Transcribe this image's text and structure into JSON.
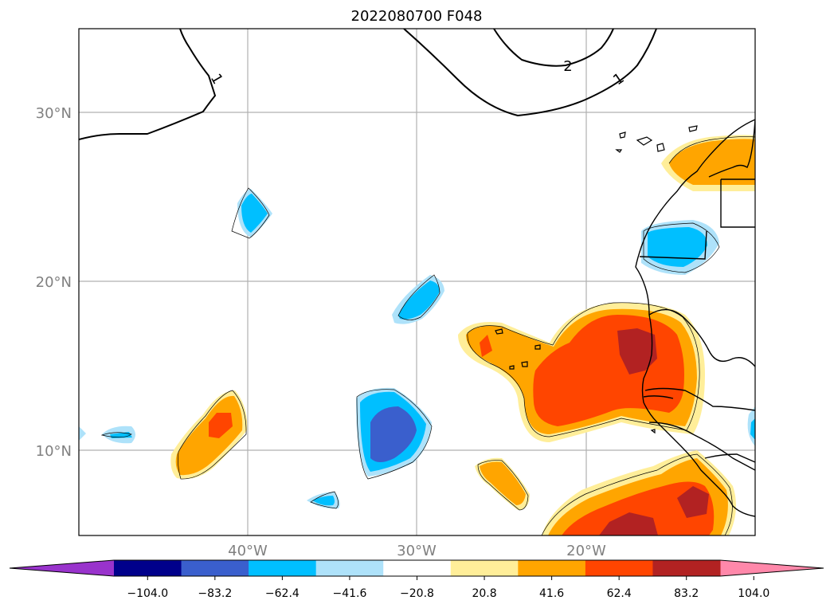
{
  "title": "2022080700 F048",
  "map": {
    "lat_labels": [
      "30°N",
      "20°N",
      "10°N"
    ],
    "lon_labels": [
      "40°W",
      "30°W",
      "20°W"
    ],
    "contour_labels": [
      "1",
      "1",
      "2"
    ]
  },
  "colorbar": {
    "tick_labels": [
      "−104.0",
      "−83.2",
      "−62.4",
      "−41.6",
      "−20.8",
      "20.8",
      "41.6",
      "62.4",
      "83.2",
      "104.0"
    ],
    "colors": [
      "#9933cc",
      "#00008b",
      "#3a5fcd",
      "#00bfff",
      "#aee2fa",
      "#ffffff",
      "#ffee99",
      "#ffa500",
      "#ff4500",
      "#b22222",
      "#ff88aa"
    ]
  }
}
